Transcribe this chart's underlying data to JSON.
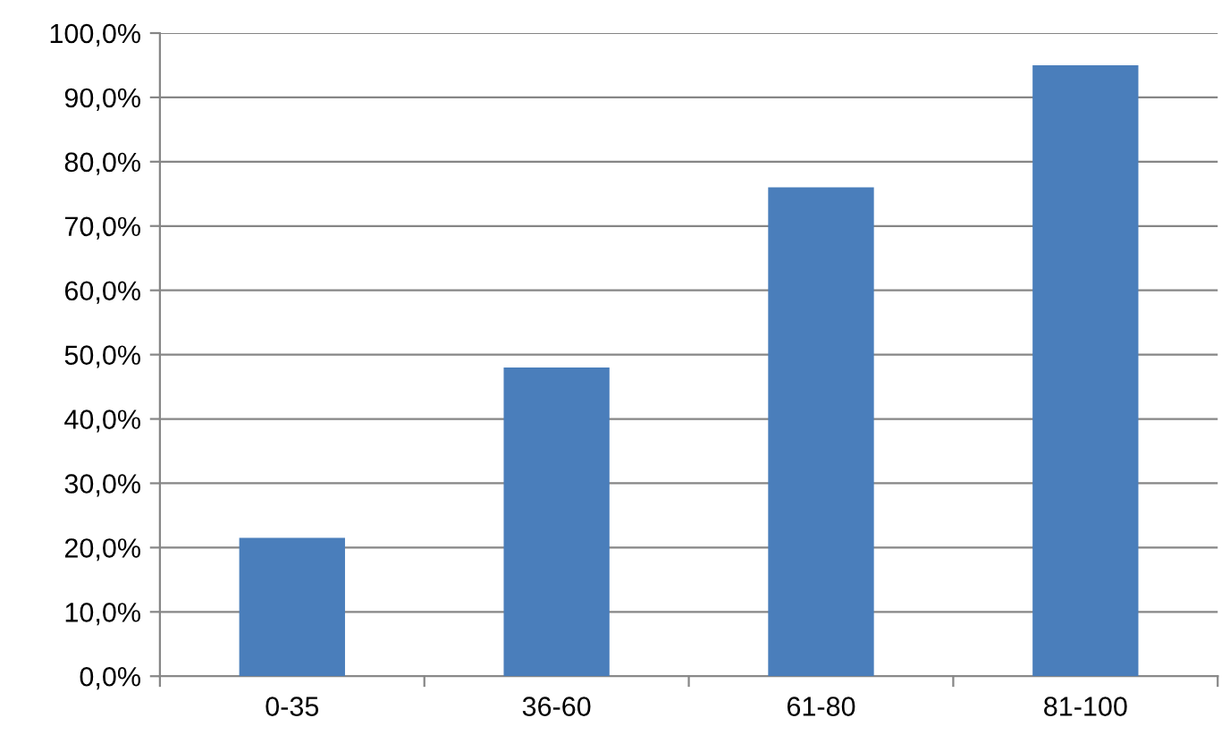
{
  "chart_data": {
    "type": "bar",
    "categories": [
      "0-35",
      "36-60",
      "61-80",
      "81-100"
    ],
    "values": [
      21.5,
      48,
      76,
      95
    ],
    "color": "#4a7ebb",
    "ylim": [
      0,
      100
    ],
    "yticks": [
      {
        "value": 0,
        "label": "0,0%"
      },
      {
        "value": 10,
        "label": "10,0%"
      },
      {
        "value": 20,
        "label": "20,0%"
      },
      {
        "value": 30,
        "label": "30,0%"
      },
      {
        "value": 40,
        "label": "40,0%"
      },
      {
        "value": 50,
        "label": "50,0%"
      },
      {
        "value": 60,
        "label": "60,0%"
      },
      {
        "value": 70,
        "label": "70,0%"
      },
      {
        "value": 80,
        "label": "80,0%"
      },
      {
        "value": 90,
        "label": "90,0%"
      },
      {
        "value": 100,
        "label": "100,0%"
      }
    ],
    "grid": "y",
    "legend": false
  }
}
